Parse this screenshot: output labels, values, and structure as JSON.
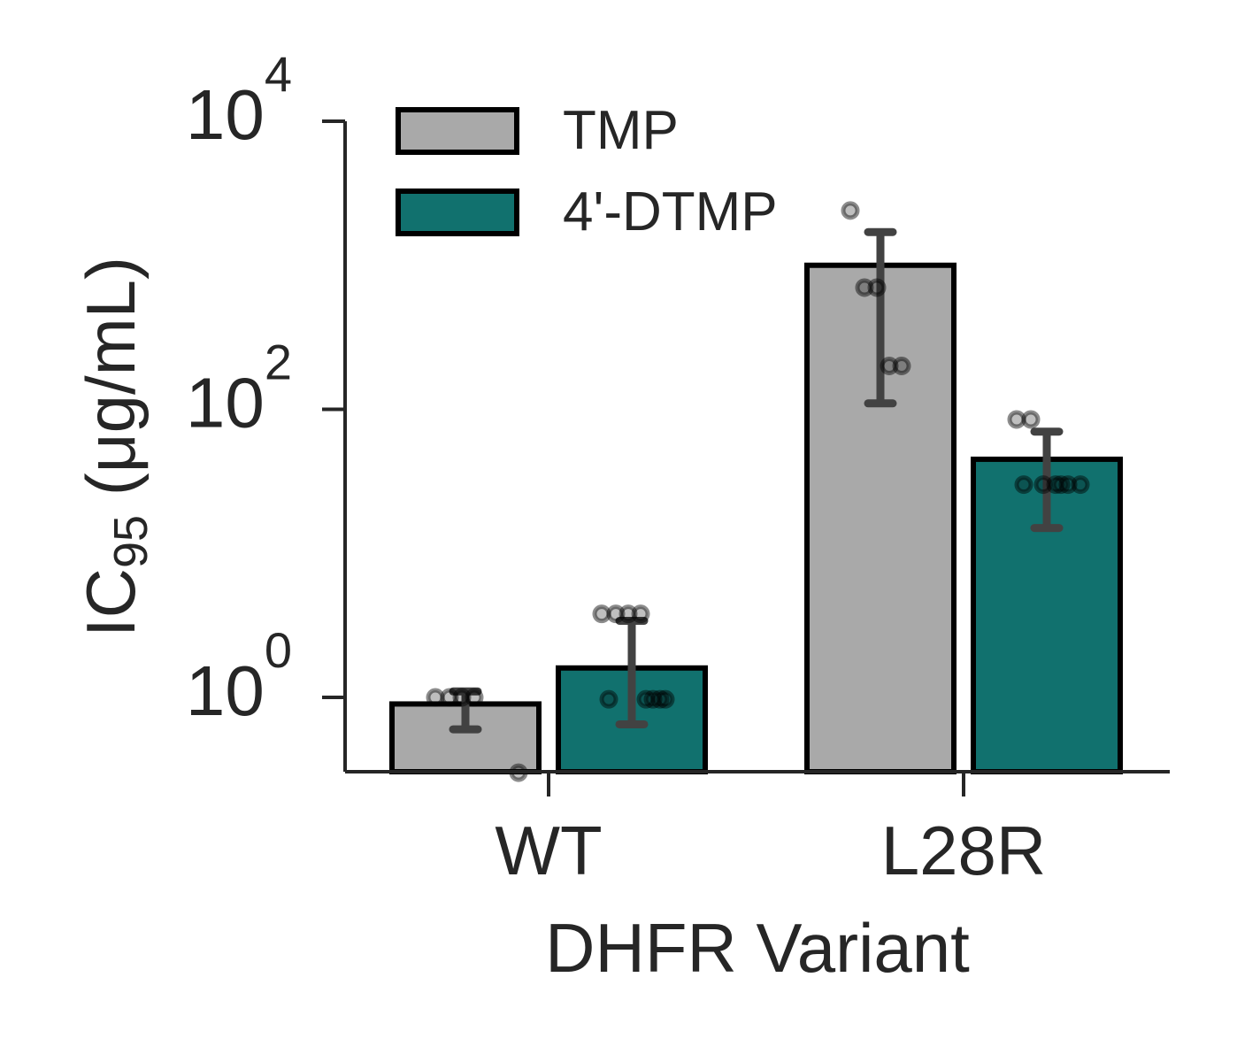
{
  "chart_data": {
    "type": "bar",
    "xlabel": "DHFR Variant",
    "ylabel": {
      "prefix": "IC",
      "subscript": "95",
      "suffix": " (μg/mL)"
    },
    "y_scale": "log",
    "ylim": [
      0.3,
      10000
    ],
    "y_ticks": [
      {
        "value": 1,
        "base": "10",
        "exponent": "0"
      },
      {
        "value": 100,
        "base": "10",
        "exponent": "2"
      },
      {
        "value": 10000,
        "base": "10",
        "exponent": "4"
      }
    ],
    "categories": [
      "WT",
      "L28R"
    ],
    "legend": {
      "placement": "top-left",
      "frame": false
    },
    "series": [
      {
        "name": "TMP",
        "color": "#a9a9a9",
        "values": [
          0.9,
          1000
        ],
        "error_low": [
          0.6,
          110
        ],
        "error_high": [
          1.1,
          1700
        ],
        "points": [
          [
            1.0,
            1.0,
            1.0,
            1.0,
            0.3
          ],
          [
            2400,
            700,
            700,
            200,
            200
          ]
        ]
      },
      {
        "name": "4'-DTMP",
        "color": "#11716e",
        "values": [
          1.6,
          45
        ],
        "error_low": [
          0.65,
          15
        ],
        "error_high": [
          3.4,
          70
        ],
        "points": [
          [
            3.8,
            3.8,
            3.8,
            3.8,
            0.97,
            0.97,
            0.97,
            0.97,
            0.97
          ],
          [
            85,
            85,
            30,
            30,
            30,
            30,
            30,
            30
          ]
        ]
      }
    ]
  }
}
